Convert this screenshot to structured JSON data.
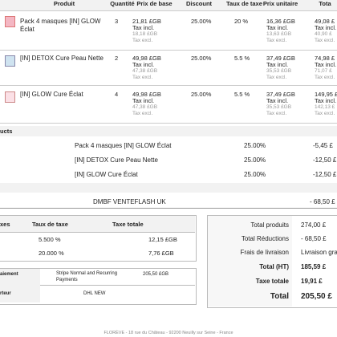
{
  "table": {
    "header": [
      "Produit",
      "Quantité",
      "Prix de base",
      "Discount",
      "Taux de taxe",
      "Prix unitaire",
      "Tota"
    ],
    "rows": [
      {
        "product": "Pack 4 masques [IN] GLOW Éclat",
        "quantity": "3",
        "base_price": [
          "21,81 £GB",
          "Tax incl.",
          "18,18 £GB",
          "Tax excl."
        ],
        "discount": "25.00%",
        "tax_rate": "20 %",
        "unit_price": [
          "16,36 £GB",
          "Tax incl.",
          "13,63 £GB",
          "Tax excl."
        ],
        "total": [
          "49,08 £",
          "Tax incl.",
          "40,90 £",
          "Tax excl."
        ]
      },
      {
        "product": "[IN] DETOX Cure Peau Nette",
        "quantity": "2",
        "base_price": [
          "49,98 £GB",
          "Tax incl.",
          "47,38 £GB",
          "Tax excl."
        ],
        "discount": "25.00%",
        "tax_rate": "5.5 %",
        "unit_price": [
          "37,49 £GB",
          "Tax incl.",
          "35,53 £GB",
          "Tax excl."
        ],
        "total": [
          "74,98 £",
          "Tax incl.",
          "71,07 £",
          "Tax excl."
        ]
      },
      {
        "product": "[IN] GLOW Cure Éclat",
        "quantity": "4",
        "base_price": [
          "49,98 £GB",
          "Tax incl.",
          "47,38 £GB",
          "Tax excl."
        ],
        "discount": "25.00%",
        "tax_rate": "5.5 %",
        "unit_price": [
          "37,49 £GB",
          "Tax incl.",
          "35,53 £GB",
          "Tax excl."
        ],
        "total": [
          "149,95 £",
          "Tax incl.",
          "142,13 £",
          "Tax excl."
        ]
      }
    ]
  },
  "discounts": {
    "title": "ucts",
    "rows": [
      {
        "name": "Pack 4 masques [IN] GLOW Éclat",
        "rate": "25.00%",
        "amount": "-5,45 £"
      },
      {
        "name": "[IN] DETOX Cure Peau Nette",
        "rate": "25.00%",
        "amount": "-12,50 £"
      },
      {
        "name": "[IN] GLOW Cure Éclat",
        "rate": "25.00%",
        "amount": "-12,50 £"
      }
    ]
  },
  "voucher": {
    "name": "DMBF VENTEFLASH UK",
    "amount": "- 68,50 £"
  },
  "taxes": {
    "header": [
      "xes",
      "Taux de taxe",
      "Taxe totale"
    ],
    "rows": [
      [
        "5.500 %",
        "12,15 £GB"
      ],
      [
        "20.000 %",
        "7,76 £GB"
      ]
    ]
  },
  "payment": {
    "rows": [
      [
        "aiement",
        "Stripe Normal and Recurring Payments",
        "205,50 £GB"
      ],
      [
        "rteur",
        "DHL NEW"
      ]
    ]
  },
  "totals": [
    {
      "label": "Total produits",
      "value": "274,00 £"
    },
    {
      "label": "Total Réductions",
      "value": "- 68,50 £"
    },
    {
      "label": "Frais de livraison",
      "value": "Livraison gratu"
    },
    {
      "label": "Total (HT)",
      "value": "185,59 £"
    },
    {
      "label": "Taxe totale",
      "value": "19,91 £"
    },
    {
      "label": "Total",
      "value": "205,50 £"
    }
  ],
  "footer": "FLORÈVE - 18 rue du Château - 92200 Neuilly sur Seine - France"
}
